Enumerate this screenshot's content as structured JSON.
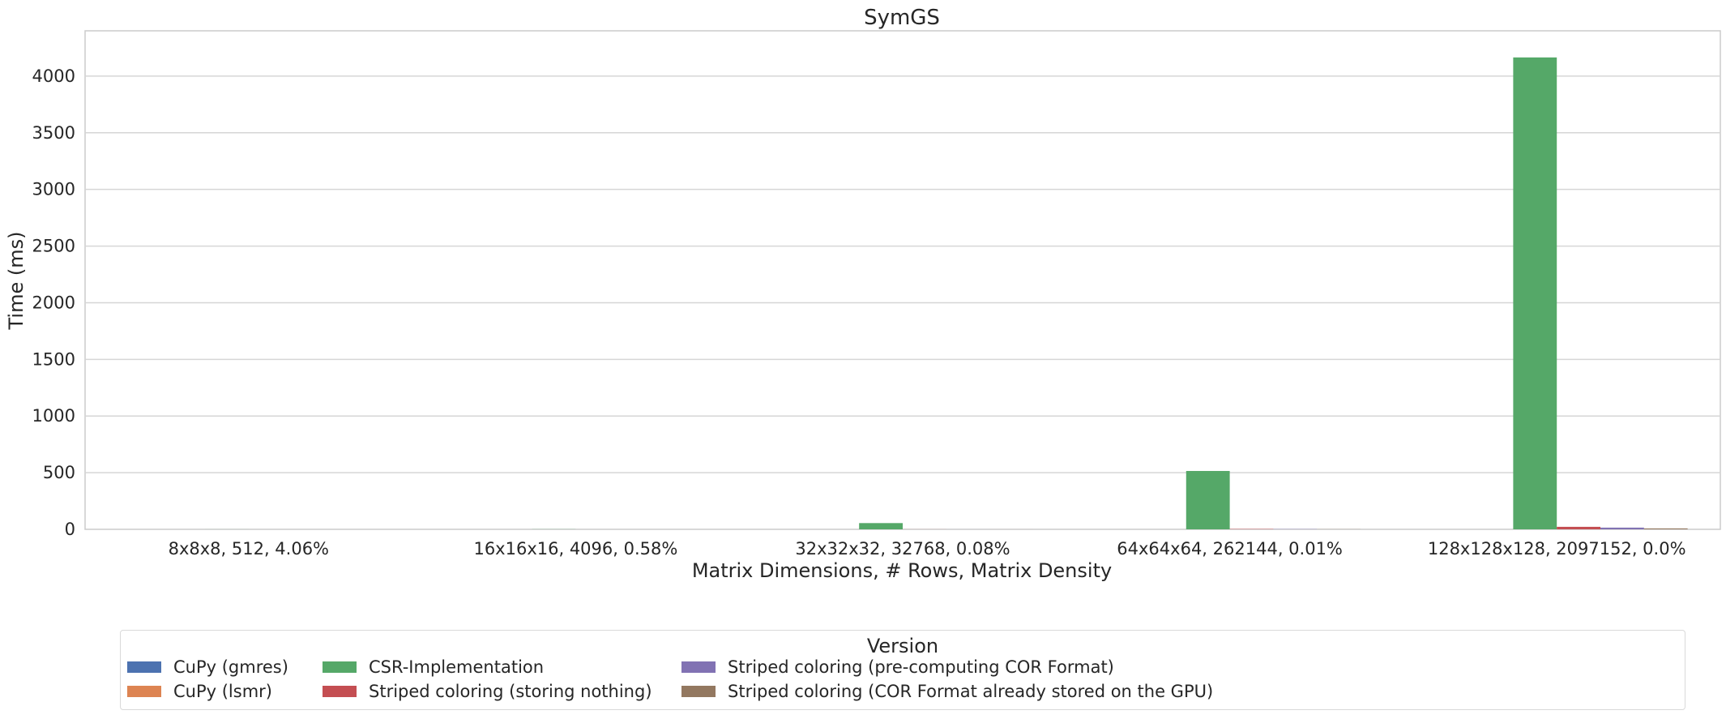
{
  "chart_data": {
    "type": "bar",
    "title": "SymGS",
    "xlabel": "Matrix Dimensions, # Rows, Matrix Density",
    "ylabel": "Time (ms)",
    "ylim": [
      0,
      4400
    ],
    "yticks": [
      0,
      500,
      1000,
      1500,
      2000,
      2500,
      3000,
      3500,
      4000
    ],
    "grid": true,
    "categories": [
      "8x8x8, 512, 4.06%",
      "16x16x16, 4096, 0.58%",
      "32x32x32, 32768, 0.08%",
      "64x64x64, 262144, 0.01%",
      "128x128x128, 2097152, 0.0%"
    ],
    "series": [
      {
        "name": "CuPy (gmres)",
        "color": "#4c72b0",
        "values": [
          0,
          0,
          0,
          0,
          0
        ]
      },
      {
        "name": "CuPy (lsmr)",
        "color": "#dd8452",
        "values": [
          0,
          0,
          0,
          0,
          0
        ]
      },
      {
        "name": "CSR-Implementation",
        "color": "#55a868",
        "values": [
          0.3,
          1,
          55,
          515,
          4165
        ]
      },
      {
        "name": "Striped coloring (storing nothing)",
        "color": "#c44e52",
        "values": [
          0,
          0,
          0.5,
          3,
          22
        ]
      },
      {
        "name": "Striped coloring (pre-computing COR Format)",
        "color": "#8172b3",
        "values": [
          0,
          0,
          0.3,
          2,
          15
        ]
      },
      {
        "name": "Striped coloring (COR Format already stored on the GPU)",
        "color": "#937860",
        "values": [
          0,
          0,
          0.2,
          1,
          8
        ]
      }
    ],
    "legend": {
      "title": "Version",
      "placement": "bottom-center",
      "columns": 4
    }
  }
}
